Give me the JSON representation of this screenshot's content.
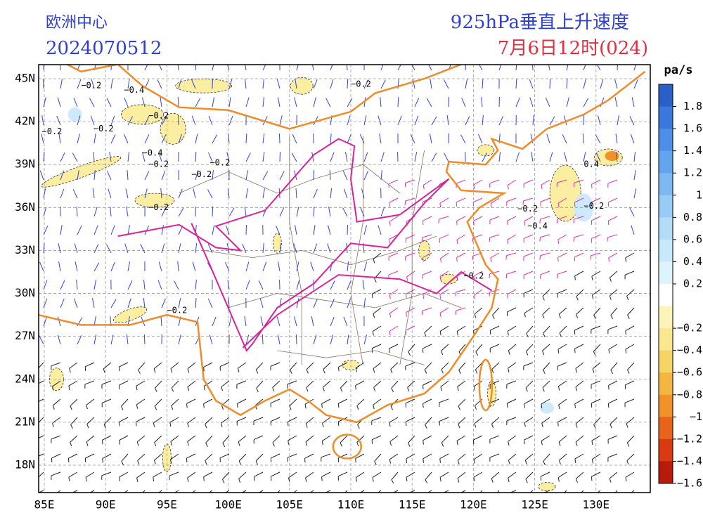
{
  "header": {
    "center": "欧洲中心",
    "run": "2024070512",
    "title": "925hPa垂直上升速度",
    "valid": "7月6日12时(024)"
  },
  "axes": {
    "lon_labels": [
      "85E",
      "90E",
      "95E",
      "100E",
      "105E",
      "110E",
      "115E",
      "120E",
      "125E",
      "130E"
    ],
    "lat_labels": [
      "45N",
      "42N",
      "39N",
      "36N",
      "33N",
      "30N",
      "27N",
      "24N",
      "21N",
      "18N"
    ]
  },
  "colorbar": {
    "unit": "pa/s",
    "labels": [
      "1.8",
      "1.6",
      "1.4",
      "1.2",
      "1",
      "0.8",
      "0.6",
      "0.4",
      "0.2",
      "−0.2",
      "−0.4",
      "−0.6",
      "−0.8",
      "−1",
      "−1.2",
      "−1.4",
      "−1.6"
    ],
    "colors": [
      "#2a5fc8",
      "#3a78dc",
      "#4d8fe6",
      "#62a4ee",
      "#7db8f2",
      "#98cbf5",
      "#b2dcf8",
      "#c8e9fa",
      "#def4fc",
      "#ffffff",
      "#fcf4b8",
      "#f9e88e",
      "#f5d468",
      "#f3b640",
      "#f0922a",
      "#e8641c",
      "#d83a14",
      "#b81a0c"
    ]
  },
  "contour_labels": [
    "−0.2",
    "−0.4",
    "−0.2",
    "−0.2",
    "−0.2",
    "−0.4",
    "−0.2",
    "−0.2",
    "−0.2",
    "−0.2",
    "−0.2",
    "−0.4",
    "−0.2",
    "−0.2",
    "0.4",
    "−0.2",
    "−0.2"
  ]
}
